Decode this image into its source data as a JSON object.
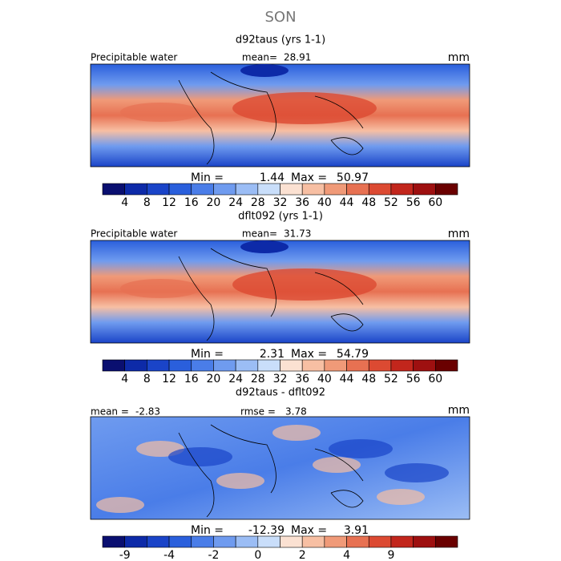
{
  "header": {
    "title": "SON"
  },
  "panels": [
    {
      "title": "d92taus (yrs 1-1)",
      "left_label": "Precipitable water",
      "stats": [
        {
          "label": "mean=",
          "value": 28.91
        }
      ],
      "units": "mm",
      "min": {
        "label": "Min =",
        "value": 1.44
      },
      "max": {
        "label": "Max =",
        "value": 50.97
      },
      "colorbar_labels": [
        "4",
        "8",
        "12",
        "16",
        "20",
        "24",
        "28",
        "32",
        "36",
        "40",
        "44",
        "48",
        "52",
        "56",
        "60"
      ]
    },
    {
      "title": "dflt092 (yrs 1-1)",
      "left_label": "Precipitable water",
      "stats": [
        {
          "label": "mean=",
          "value": 31.73
        }
      ],
      "units": "mm",
      "min": {
        "label": "Min =",
        "value": 2.31
      },
      "max": {
        "label": "Max =",
        "value": 54.79
      },
      "colorbar_labels": [
        "4",
        "8",
        "12",
        "16",
        "20",
        "24",
        "28",
        "32",
        "36",
        "40",
        "44",
        "48",
        "52",
        "56",
        "60"
      ]
    },
    {
      "title": "d92taus - dflt092",
      "stats": [
        {
          "label": "mean =",
          "value": -2.83
        },
        {
          "label": "rmse =",
          "value": 3.78
        }
      ],
      "units": "mm",
      "min": {
        "label": "Min =",
        "value": -12.39
      },
      "max": {
        "label": "Max =",
        "value": 3.91
      },
      "colorbar_labels": [
        "-9",
        null,
        "-4",
        null,
        "-2",
        null,
        "0",
        null,
        "2",
        null,
        "4",
        null,
        "9",
        null,
        null
      ]
    }
  ],
  "colors": [
    "#0a0f70",
    "#0d2aa8",
    "#1a44c8",
    "#2a5fdc",
    "#4a7de8",
    "#6f9bef",
    "#9bbdf5",
    "#c9defa",
    "#fbe1d2",
    "#f7bfa3",
    "#f09a78",
    "#e77152",
    "#dc4a32",
    "#c2261c",
    "#9e1010",
    "#6a0000"
  ]
}
